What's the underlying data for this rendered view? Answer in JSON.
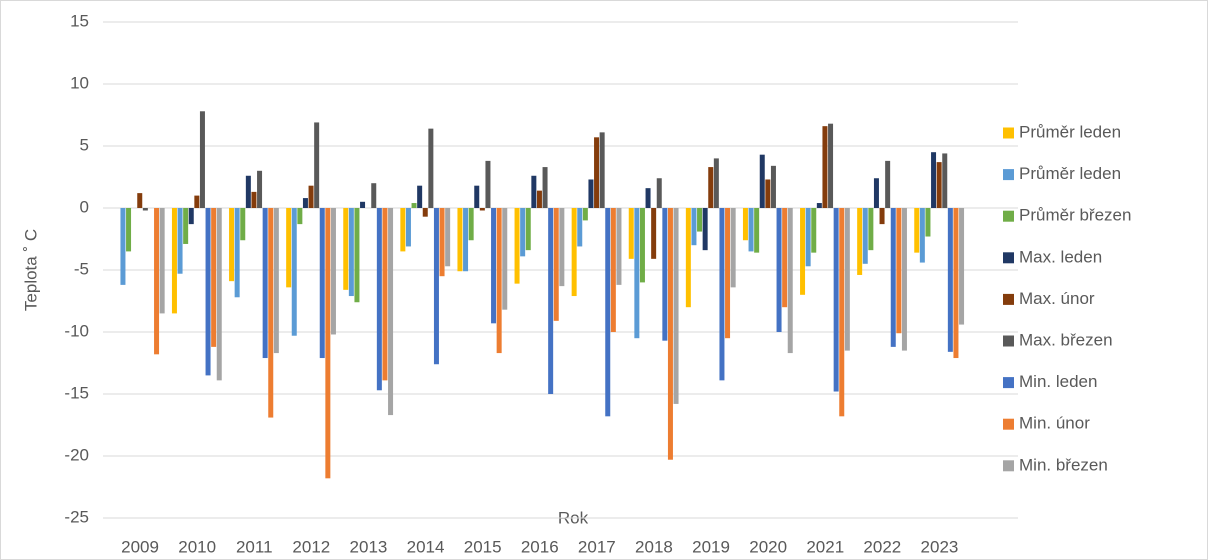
{
  "chart_data": {
    "type": "bar",
    "xlabel": "Rok",
    "ylabel": "Teplota ˚ C",
    "categories": [
      "2009",
      "2010",
      "2011",
      "2012",
      "2013",
      "2014",
      "2015",
      "2016",
      "2017",
      "2018",
      "2019",
      "2020",
      "2021",
      "2022",
      "2023"
    ],
    "ylim": [
      -25,
      15
    ],
    "yticks": [
      -25,
      -20,
      -15,
      -10,
      -5,
      0,
      5,
      10,
      15
    ],
    "grid": true,
    "legend": "right",
    "series": [
      {
        "name": "Průměr leden",
        "color": "#FFC000",
        "values": [
          null,
          -8.5,
          -5.9,
          -6.4,
          -6.6,
          -3.5,
          -5.1,
          -6.1,
          -7.1,
          -4.1,
          -8.0,
          -2.6,
          -7.0,
          -5.4,
          -3.6
        ]
      },
      {
        "name": "Průměr leden",
        "color": "#5B9BD5",
        "values": [
          -6.2,
          -5.3,
          -7.2,
          -10.3,
          -7.1,
          -3.1,
          -5.1,
          -3.9,
          -3.1,
          -10.5,
          -3.0,
          -3.5,
          -4.7,
          -4.5,
          -4.4
        ]
      },
      {
        "name": "Průměr březen",
        "color": "#70AD47",
        "values": [
          -3.5,
          -2.9,
          -2.6,
          -1.3,
          -7.6,
          0.4,
          -2.6,
          -3.4,
          -1.0,
          -6.0,
          -1.9,
          -3.6,
          -3.6,
          -3.4,
          -2.3
        ]
      },
      {
        "name": "Max. leden",
        "color": "#203864",
        "values": [
          null,
          -1.3,
          2.6,
          0.8,
          0.5,
          1.8,
          1.8,
          2.6,
          2.3,
          1.6,
          -3.4,
          4.3,
          0.4,
          2.4,
          4.5
        ]
      },
      {
        "name": "Max. únor",
        "color": "#843C0C",
        "values": [
          1.2,
          1.0,
          1.3,
          1.8,
          null,
          -0.7,
          -0.2,
          1.4,
          5.7,
          -4.1,
          3.3,
          2.3,
          6.6,
          -1.3,
          3.7
        ]
      },
      {
        "name": "Max. březen",
        "color": "#595959",
        "values": [
          -0.2,
          7.8,
          3.0,
          6.9,
          2.0,
          6.4,
          3.8,
          3.3,
          6.1,
          2.4,
          4.0,
          3.4,
          6.8,
          3.8,
          4.4
        ]
      },
      {
        "name": "Min. leden",
        "color": "#4472C4",
        "values": [
          null,
          -13.5,
          -12.1,
          -12.1,
          -14.7,
          -12.6,
          -9.3,
          -15.0,
          -16.8,
          -10.7,
          -13.9,
          -10.0,
          -14.8,
          -11.2,
          -11.6
        ]
      },
      {
        "name": "Min. únor",
        "color": "#ED7D31",
        "values": [
          -11.8,
          -11.2,
          -16.9,
          -21.8,
          -13.9,
          -5.5,
          -11.7,
          -9.1,
          -10.0,
          -20.3,
          -10.5,
          -8.0,
          -16.8,
          -10.1,
          -12.1
        ]
      },
      {
        "name": "Min. březen",
        "color": "#A5A5A5",
        "values": [
          -8.5,
          -13.9,
          -11.7,
          -10.2,
          -16.7,
          -4.7,
          -8.2,
          -6.3,
          -6.2,
          -15.8,
          -6.4,
          -11.7,
          -11.5,
          -11.5,
          -9.4
        ]
      }
    ]
  }
}
